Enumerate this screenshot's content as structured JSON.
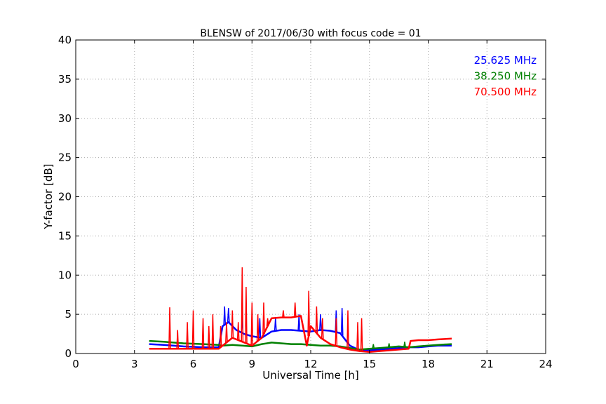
{
  "chart_data": {
    "type": "line",
    "title": "BLENSW of 2017/06/30 with focus code = 01",
    "xlabel": "Universal Time [h]",
    "ylabel": "Y-factor [dB]",
    "xlim": [
      0,
      24
    ],
    "ylim": [
      0,
      40
    ],
    "xticks": [
      0,
      3,
      6,
      9,
      12,
      15,
      18,
      21,
      24
    ],
    "yticks": [
      0,
      5,
      10,
      15,
      20,
      25,
      30,
      35,
      40
    ],
    "grid": true,
    "legend_position": "top-right",
    "series": [
      {
        "name": "25.625 MHz",
        "color": "#0000ff",
        "x": [
          3.75,
          4.5,
          5.5,
          6.5,
          7.3,
          7.5,
          7.8,
          8.2,
          8.6,
          9.0,
          9.5,
          10.0,
          10.5,
          11.0,
          11.5,
          12.0,
          12.5,
          13.0,
          13.5,
          14.0,
          14.5,
          15.0,
          15.5,
          16.0,
          16.5,
          17.0,
          17.5,
          18.0,
          18.5,
          19.2
        ],
        "y": [
          1.2,
          1.1,
          0.9,
          0.8,
          0.8,
          3.5,
          4.0,
          3.0,
          2.5,
          2.2,
          2.0,
          2.8,
          3.0,
          3.0,
          2.9,
          2.8,
          3.0,
          2.9,
          2.6,
          1.0,
          0.4,
          0.4,
          0.5,
          0.6,
          0.7,
          0.8,
          0.8,
          0.9,
          1.0,
          1.0
        ],
        "spikes": [
          [
            7.6,
            6.0
          ],
          [
            7.8,
            5.8
          ],
          [
            8.5,
            5.0
          ],
          [
            9.4,
            4.5
          ],
          [
            10.2,
            4.5
          ],
          [
            11.4,
            5.0
          ],
          [
            12.5,
            5.0
          ],
          [
            13.3,
            5.5
          ],
          [
            13.6,
            5.8
          ]
        ]
      },
      {
        "name": "38.250 MHz",
        "color": "#008000",
        "x": [
          3.75,
          4.5,
          5.5,
          6.5,
          7.3,
          7.5,
          8.0,
          8.5,
          9.0,
          9.5,
          10.0,
          10.5,
          11.0,
          11.5,
          12.0,
          12.5,
          13.0,
          13.5,
          14.0,
          14.5,
          15.0,
          15.5,
          16.0,
          16.5,
          17.0,
          17.5,
          18.0,
          18.5,
          19.2
        ],
        "y": [
          1.6,
          1.5,
          1.3,
          1.2,
          1.1,
          1.0,
          1.1,
          1.0,
          0.9,
          1.2,
          1.4,
          1.3,
          1.2,
          1.2,
          1.1,
          1.0,
          1.0,
          0.9,
          0.7,
          0.5,
          0.6,
          0.7,
          0.8,
          0.9,
          0.8,
          0.9,
          1.0,
          1.1,
          1.2
        ],
        "spikes": [
          [
            15.2,
            1.2
          ],
          [
            16.0,
            1.3
          ],
          [
            16.8,
            1.5
          ]
        ]
      },
      {
        "name": "70.500 MHz",
        "color": "#ff0000",
        "x": [
          3.75,
          4.5,
          5.5,
          6.5,
          7.3,
          7.5,
          8.0,
          8.5,
          9.0,
          9.5,
          10.0,
          10.5,
          11.0,
          11.5,
          11.8,
          12.0,
          12.5,
          13.0,
          13.5,
          14.0,
          14.5,
          15.0,
          15.5,
          16.0,
          16.5,
          17.0,
          17.1,
          17.5,
          18.0,
          18.5,
          19.2
        ],
        "y": [
          0.6,
          0.6,
          0.6,
          0.6,
          0.6,
          1.0,
          2.0,
          1.5,
          1.0,
          2.0,
          4.5,
          4.6,
          4.6,
          4.8,
          1.0,
          3.5,
          2.0,
          1.2,
          0.8,
          0.5,
          0.3,
          0.2,
          0.3,
          0.4,
          0.5,
          0.6,
          1.6,
          1.7,
          1.7,
          1.8,
          1.9
        ],
        "spikes": [
          [
            4.8,
            5.9
          ],
          [
            5.2,
            3.0
          ],
          [
            5.7,
            4.0
          ],
          [
            6.0,
            5.5
          ],
          [
            6.5,
            4.5
          ],
          [
            6.8,
            3.5
          ],
          [
            7.0,
            5.0
          ],
          [
            7.4,
            3.5
          ],
          [
            7.7,
            4.0
          ],
          [
            8.0,
            5.5
          ],
          [
            8.3,
            4.0
          ],
          [
            8.5,
            11.0
          ],
          [
            8.7,
            8.5
          ],
          [
            9.0,
            6.5
          ],
          [
            9.3,
            5.0
          ],
          [
            9.6,
            6.5
          ],
          [
            9.8,
            4.5
          ],
          [
            10.6,
            5.5
          ],
          [
            11.2,
            6.5
          ],
          [
            11.9,
            8.0
          ],
          [
            12.3,
            6.0
          ],
          [
            12.6,
            4.5
          ],
          [
            13.3,
            4.5
          ],
          [
            13.9,
            5.5
          ],
          [
            14.4,
            4.0
          ],
          [
            14.6,
            4.5
          ]
        ]
      }
    ]
  }
}
